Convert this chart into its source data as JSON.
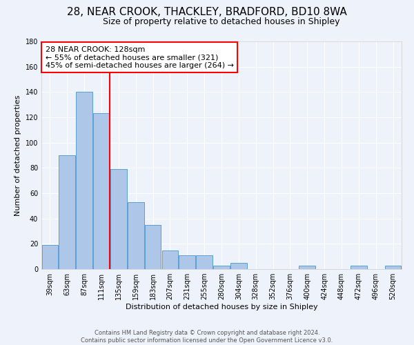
{
  "title": "28, NEAR CROOK, THACKLEY, BRADFORD, BD10 8WA",
  "subtitle": "Size of property relative to detached houses in Shipley",
  "xlabel": "Distribution of detached houses by size in Shipley",
  "ylabel": "Number of detached properties",
  "bar_labels": [
    "39sqm",
    "63sqm",
    "87sqm",
    "111sqm",
    "135sqm",
    "159sqm",
    "183sqm",
    "207sqm",
    "231sqm",
    "255sqm",
    "280sqm",
    "304sqm",
    "328sqm",
    "352sqm",
    "376sqm",
    "400sqm",
    "424sqm",
    "448sqm",
    "472sqm",
    "496sqm",
    "520sqm"
  ],
  "bar_values": [
    19,
    90,
    140,
    123,
    79,
    53,
    35,
    15,
    11,
    11,
    3,
    5,
    0,
    0,
    0,
    3,
    0,
    0,
    3,
    0,
    3
  ],
  "bar_color": "#aec6e8",
  "bar_edge_color": "#5a9fd4",
  "vline_color": "red",
  "vline_index": 4,
  "annotation_text": "28 NEAR CROOK: 128sqm\n← 55% of detached houses are smaller (321)\n45% of semi-detached houses are larger (264) →",
  "annotation_box_color": "white",
  "annotation_box_edge_color": "red",
  "ylim": [
    0,
    180
  ],
  "yticks": [
    0,
    20,
    40,
    60,
    80,
    100,
    120,
    140,
    160,
    180
  ],
  "footer_line1": "Contains HM Land Registry data © Crown copyright and database right 2024.",
  "footer_line2": "Contains public sector information licensed under the Open Government Licence v3.0.",
  "background_color": "#eef2fb",
  "grid_color": "white",
  "title_fontsize": 11,
  "subtitle_fontsize": 9,
  "axis_label_fontsize": 8,
  "tick_fontsize": 7,
  "annotation_fontsize": 8,
  "footer_fontsize": 6
}
